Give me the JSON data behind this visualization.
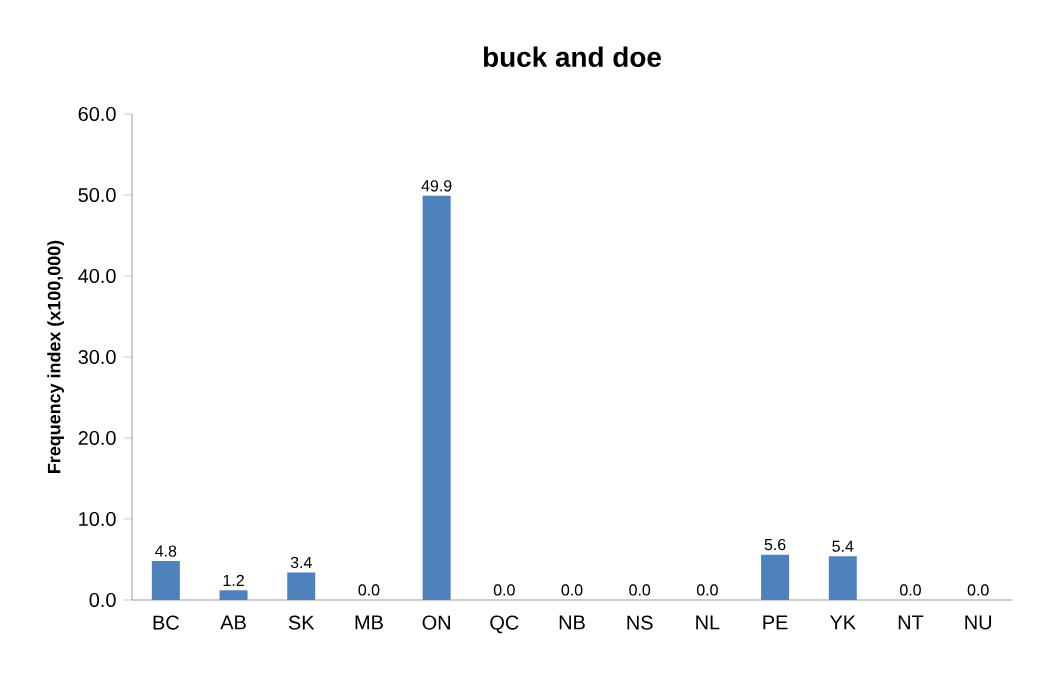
{
  "chart_data": {
    "type": "bar",
    "title": "buck and doe",
    "ylabel": "Frequency index (x100,000)",
    "categories": [
      "BC",
      "AB",
      "SK",
      "MB",
      "ON",
      "QC",
      "NB",
      "NS",
      "NL",
      "PE",
      "YK",
      "NT",
      "NU"
    ],
    "values": [
      4.8,
      1.2,
      3.4,
      0.0,
      49.9,
      0.0,
      0.0,
      0.0,
      0.0,
      5.6,
      5.4,
      0.0,
      0.0
    ],
    "value_labels": [
      "4.8",
      "1.2",
      "3.4",
      "0.0",
      "49.9",
      "0.0",
      "0.0",
      "0.0",
      "0.0",
      "5.6",
      "5.4",
      "0.0",
      "0.0"
    ],
    "color": "#4f81bd",
    "ylim": [
      0,
      60
    ],
    "yticks": [
      {
        "value": 0,
        "label": "0.0"
      },
      {
        "value": 10,
        "label": "10.0"
      },
      {
        "value": 20,
        "label": "20.0"
      },
      {
        "value": 30,
        "label": "30.0"
      },
      {
        "value": 40,
        "label": "40.0"
      },
      {
        "value": 50,
        "label": "50.0"
      },
      {
        "value": 60,
        "label": "60.0"
      }
    ],
    "grid": false
  }
}
